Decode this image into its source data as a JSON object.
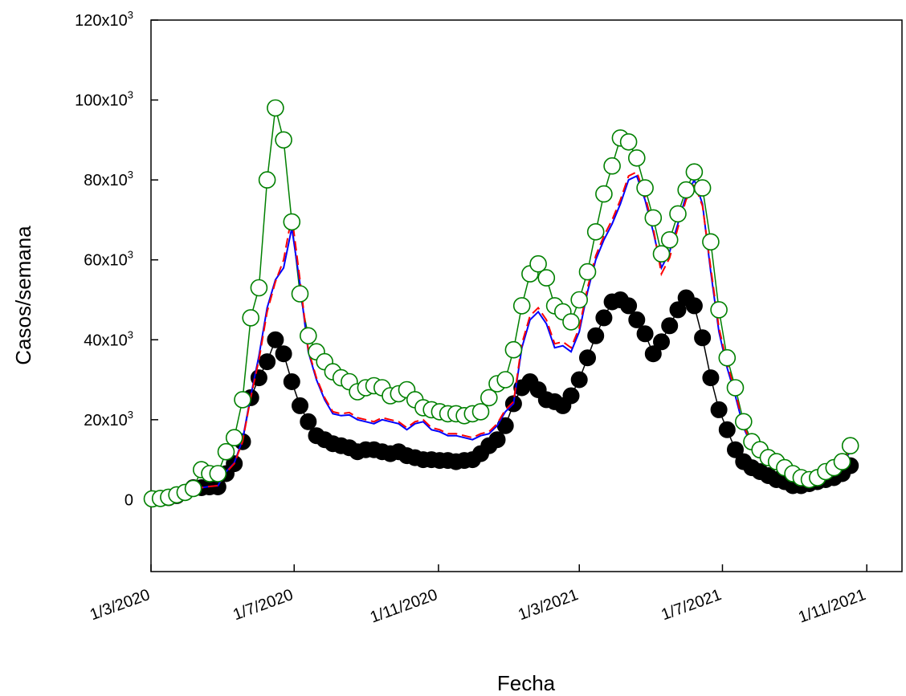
{
  "chart_data": {
    "type": "line",
    "xlabel": "Fecha",
    "ylabel": "Casos/semana",
    "xlim": [
      "2020-03-01",
      "2021-12-01"
    ],
    "ylim": [
      -18000,
      120000
    ],
    "grid": false,
    "x_tick_labels": [
      "1/3/2020",
      "1/7/2020",
      "1/11/2020",
      "1/3/2021",
      "1/7/2021",
      "1/11/2021"
    ],
    "x_tick_dates": [
      "2020-03-01",
      "2020-07-01",
      "2020-11-01",
      "2021-03-01",
      "2021-07-01",
      "2021-11-01"
    ],
    "y_ticks": [
      {
        "value": 0,
        "base": "0",
        "exp": ""
      },
      {
        "value": 20000,
        "base": "20x10",
        "exp": "3"
      },
      {
        "value": 40000,
        "base": "40x10",
        "exp": "3"
      },
      {
        "value": 60000,
        "base": "60x10",
        "exp": "3"
      },
      {
        "value": 80000,
        "base": "80x10",
        "exp": "3"
      },
      {
        "value": 100000,
        "base": "100x10",
        "exp": "3"
      },
      {
        "value": 120000,
        "base": "120x10",
        "exp": "3"
      }
    ],
    "x": [
      "2020-03-02",
      "2020-03-09",
      "2020-03-16",
      "2020-03-23",
      "2020-03-30",
      "2020-04-06",
      "2020-04-13",
      "2020-04-20",
      "2020-04-27",
      "2020-05-04",
      "2020-05-11",
      "2020-05-18",
      "2020-05-25",
      "2020-06-01",
      "2020-06-08",
      "2020-06-15",
      "2020-06-22",
      "2020-06-29",
      "2020-07-06",
      "2020-07-13",
      "2020-07-20",
      "2020-07-27",
      "2020-08-03",
      "2020-08-10",
      "2020-08-17",
      "2020-08-24",
      "2020-08-31",
      "2020-09-07",
      "2020-09-14",
      "2020-09-21",
      "2020-09-28",
      "2020-10-05",
      "2020-10-12",
      "2020-10-19",
      "2020-10-26",
      "2020-11-02",
      "2020-11-09",
      "2020-11-16",
      "2020-11-23",
      "2020-11-30",
      "2020-12-07",
      "2020-12-14",
      "2020-12-21",
      "2020-12-28",
      "2021-01-04",
      "2021-01-11",
      "2021-01-18",
      "2021-01-25",
      "2021-02-01",
      "2021-02-08",
      "2021-02-15",
      "2021-02-22",
      "2021-03-01",
      "2021-03-08",
      "2021-03-15",
      "2021-03-22",
      "2021-03-29",
      "2021-04-05",
      "2021-04-12",
      "2021-04-19",
      "2021-04-26",
      "2021-05-03",
      "2021-05-10",
      "2021-05-17",
      "2021-05-24",
      "2021-05-31",
      "2021-06-07",
      "2021-06-14",
      "2021-06-21",
      "2021-06-28",
      "2021-07-05",
      "2021-07-12",
      "2021-07-19",
      "2021-07-26",
      "2021-08-02",
      "2021-08-09",
      "2021-08-16",
      "2021-08-23",
      "2021-08-30",
      "2021-09-06",
      "2021-09-13",
      "2021-09-20",
      "2021-09-27",
      "2021-10-04",
      "2021-10-11",
      "2021-10-18"
    ],
    "series": [
      {
        "color": "#000000",
        "marker": "filled-circle",
        "values": [
          200,
          300,
          500,
          1000,
          1800,
          3000,
          3000,
          3200,
          3200,
          6500,
          9000,
          14500,
          25500,
          30500,
          34500,
          40000,
          36500,
          29500,
          23500,
          19500,
          16000,
          15000,
          14000,
          13500,
          13000,
          12000,
          12500,
          12500,
          12000,
          11500,
          12000,
          11000,
          10500,
          10000,
          10000,
          9800,
          9800,
          9500,
          9800,
          10000,
          11500,
          13500,
          15000,
          18500,
          24000,
          28000,
          29500,
          27500,
          25000,
          24500,
          23500,
          26000,
          30000,
          35500,
          41000,
          45500,
          49500,
          50000,
          48500,
          45000,
          41500,
          36500,
          39500,
          43500,
          47500,
          50500,
          48500,
          40500,
          30500,
          22500,
          17500,
          12500,
          9500,
          8000,
          7000,
          6000,
          5000,
          4500,
          3500,
          3500,
          4000,
          4500,
          5000,
          5500,
          6500,
          8500
        ]
      },
      {
        "color": "#008000",
        "marker": "open-circle",
        "values": [
          200,
          300,
          600,
          1200,
          1800,
          2800,
          7500,
          6500,
          6500,
          12000,
          15500,
          25000,
          45500,
          53000,
          80000,
          98000,
          90000,
          69500,
          51500,
          41000,
          37000,
          34500,
          32000,
          30500,
          29500,
          27000,
          28000,
          28500,
          28000,
          26000,
          26500,
          27500,
          25000,
          23000,
          22500,
          22000,
          21500,
          21500,
          21000,
          21500,
          22000,
          25500,
          29000,
          30000,
          37500,
          48500,
          56500,
          59000,
          55500,
          48500,
          47000,
          44500,
          50000,
          57000,
          67000,
          76500,
          83500,
          90500,
          89500,
          85500,
          78000,
          70500,
          61500,
          65000,
          71500,
          77500,
          82000,
          78000,
          64500,
          47500,
          35500,
          28000,
          19500,
          14500,
          12500,
          10500,
          9500,
          8000,
          6500,
          5500,
          5000,
          5500,
          7000,
          8000,
          9500,
          13500
        ]
      },
      {
        "color": "#0000ff",
        "style": "solid",
        "values": [
          200,
          300,
          500,
          1000,
          1700,
          2800,
          3000,
          3300,
          3500,
          7000,
          9200,
          15000,
          26000,
          36000,
          48000,
          55000,
          58000,
          68000,
          54000,
          37000,
          30000,
          25000,
          21500,
          21000,
          21200,
          20000,
          19500,
          19000,
          20000,
          19500,
          19000,
          17500,
          19000,
          19500,
          17500,
          17000,
          16000,
          16000,
          15500,
          15000,
          16000,
          16500,
          18500,
          22000,
          24000,
          38000,
          45000,
          47000,
          44000,
          38000,
          38500,
          37000,
          42000,
          52000,
          60000,
          65000,
          69000,
          74000,
          80000,
          81000,
          75000,
          67000,
          58000,
          62000,
          69000,
          76000,
          80000,
          74000,
          57000,
          42000,
          33000,
          26000,
          18000,
          13500,
          11500,
          9500,
          8500,
          7000,
          5500,
          5000,
          4800,
          5500,
          6500,
          8000,
          9000,
          12000
        ]
      },
      {
        "color": "#ff0000",
        "style": "dashed",
        "values": [
          200,
          300,
          500,
          1000,
          1700,
          2800,
          3000,
          3300,
          3500,
          6800,
          9000,
          14500,
          25500,
          35000,
          47000,
          54500,
          60000,
          71000,
          55000,
          37500,
          30500,
          25500,
          22000,
          21500,
          21800,
          20500,
          20000,
          19500,
          20500,
          20000,
          19500,
          18000,
          19500,
          20000,
          18000,
          17500,
          16500,
          16500,
          16000,
          15500,
          16500,
          17000,
          19000,
          22500,
          24500,
          39000,
          46000,
          48000,
          45000,
          39000,
          39500,
          38000,
          43000,
          53000,
          61000,
          66000,
          70000,
          75000,
          81000,
          82000,
          76000,
          68000,
          56500,
          60500,
          68000,
          75000,
          79000,
          73500,
          58000,
          43000,
          34000,
          27000,
          18500,
          14000,
          12000,
          10000,
          9000,
          7500,
          6000,
          5200,
          5000,
          5700,
          6800,
          8300,
          9300,
          12500
        ]
      }
    ]
  }
}
